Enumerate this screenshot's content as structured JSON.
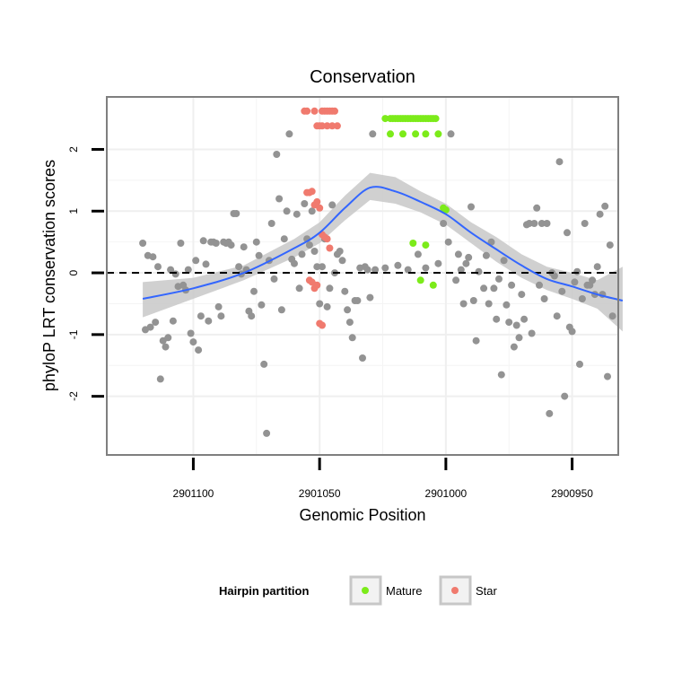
{
  "chart_data": {
    "type": "scatter",
    "title": "Conservation",
    "xlabel": "Genomic Position",
    "ylabel": "phyloP LRT conservation scores",
    "x_reversed": true,
    "xlim": [
      2901130,
      2900936
    ],
    "ylim": [
      -2.95,
      2.85
    ],
    "x_ticks": [
      2901100,
      2901050,
      2901000,
      2900950
    ],
    "x_tick_labels": [
      "2901100",
      "2901050",
      "2901000",
      "2900950"
    ],
    "y_ticks": [
      -2,
      -1,
      0,
      1,
      2
    ],
    "y_tick_labels": [
      "-2",
      "-1",
      "0",
      "1",
      "2"
    ],
    "reference_line": {
      "y": 0,
      "style": "dashed"
    },
    "legend": {
      "title": "Hairpin partition",
      "placement": "bottom",
      "entries": [
        {
          "label": "Mature",
          "color": "#7CEB1A"
        },
        {
          "label": "Star",
          "color": "#F07A6E"
        }
      ]
    },
    "colors": {
      "other": "#939393",
      "Mature": "#7CEB1A",
      "Star": "#F07A6E",
      "smooth": "#3366FF",
      "ribbon": "#c8c8c8"
    },
    "series": [
      {
        "name": "Other",
        "points": [
          [
            2901120,
            0.48
          ],
          [
            2901119,
            -0.92
          ],
          [
            2901118,
            0.28
          ],
          [
            2901117,
            -0.88
          ],
          [
            2901116,
            0.26
          ],
          [
            2901115,
            -0.8
          ],
          [
            2901114,
            0.1
          ],
          [
            2901113,
            -1.72
          ],
          [
            2901112,
            -1.1
          ],
          [
            2901111,
            -1.2
          ],
          [
            2901110,
            -1.05
          ],
          [
            2901109,
            0.05
          ],
          [
            2901108,
            -0.78
          ],
          [
            2901107,
            -0.02
          ],
          [
            2901106,
            -0.22
          ],
          [
            2901105,
            0.48
          ],
          [
            2901104,
            -0.2
          ],
          [
            2901103,
            -0.28
          ],
          [
            2901102,
            0.05
          ],
          [
            2901101,
            -0.98
          ],
          [
            2901100,
            -1.12
          ],
          [
            2901099,
            0.2
          ],
          [
            2901098,
            -1.25
          ],
          [
            2901097,
            -0.7
          ],
          [
            2901096,
            0.52
          ],
          [
            2901095,
            0.14
          ],
          [
            2901094,
            -0.78
          ],
          [
            2901093,
            0.5
          ],
          [
            2901092,
            0.5
          ],
          [
            2901091,
            0.48
          ],
          [
            2901090,
            -0.55
          ],
          [
            2901089,
            -0.7
          ],
          [
            2901088,
            0.5
          ],
          [
            2901087,
            0.48
          ],
          [
            2901086,
            0.5
          ],
          [
            2901085,
            0.45
          ],
          [
            2901084,
            0.96
          ],
          [
            2901083,
            0.96
          ],
          [
            2901082,
            0.1
          ],
          [
            2901081,
            -0.02
          ],
          [
            2901080,
            0.42
          ],
          [
            2901079,
            0.05
          ],
          [
            2901078,
            -0.62
          ],
          [
            2901077,
            -0.7
          ],
          [
            2901076,
            -0.3
          ],
          [
            2901075,
            0.5
          ],
          [
            2901074,
            0.28
          ],
          [
            2901073,
            -0.52
          ],
          [
            2901072,
            -1.48
          ],
          [
            2901071,
            -2.6
          ],
          [
            2901070,
            0.2
          ],
          [
            2901069,
            0.8
          ],
          [
            2901068,
            -0.1
          ],
          [
            2901067,
            1.92
          ],
          [
            2901066,
            1.2
          ],
          [
            2901065,
            -0.6
          ],
          [
            2901064,
            0.55
          ],
          [
            2901063,
            1.0
          ],
          [
            2901062,
            2.25
          ],
          [
            2901061,
            0.22
          ],
          [
            2901060,
            0.15
          ],
          [
            2901059,
            0.95
          ],
          [
            2901058,
            -0.25
          ],
          [
            2901057,
            0.3
          ],
          [
            2901056,
            1.12
          ],
          [
            2901055,
            0.55
          ],
          [
            2901054,
            0.45
          ],
          [
            2901053,
            1.0
          ],
          [
            2901052,
            0.35
          ],
          [
            2901051,
            0.1
          ],
          [
            2901050,
            -0.5
          ],
          [
            2901049,
            0.1
          ],
          [
            2901048,
            0.55
          ],
          [
            2901047,
            -0.55
          ],
          [
            2901046,
            -0.25
          ],
          [
            2901045,
            1.1
          ],
          [
            2901044,
            0.0
          ],
          [
            2901043,
            0.3
          ],
          [
            2901042,
            0.35
          ],
          [
            2901041,
            0.2
          ],
          [
            2901040,
            -0.3
          ],
          [
            2901039,
            -0.6
          ],
          [
            2901038,
            -0.8
          ],
          [
            2901037,
            -1.05
          ],
          [
            2901036,
            -0.45
          ],
          [
            2901035,
            -0.45
          ],
          [
            2901034,
            0.08
          ],
          [
            2901033,
            -1.38
          ],
          [
            2901032,
            0.1
          ],
          [
            2901031,
            0.05
          ],
          [
            2901030,
            -0.4
          ],
          [
            2901029,
            2.25
          ],
          [
            2901028,
            0.05
          ],
          [
            2901024,
            0.08
          ],
          [
            2901019,
            0.12
          ],
          [
            2901015,
            0.05
          ],
          [
            2901011,
            0.3
          ],
          [
            2901008,
            0.08
          ],
          [
            2901003,
            0.15
          ],
          [
            2901001,
            0.8
          ],
          [
            2900999,
            0.5
          ],
          [
            2900998,
            2.25
          ],
          [
            2900996,
            -0.12
          ],
          [
            2900995,
            0.3
          ],
          [
            2900994,
            0.05
          ],
          [
            2900993,
            -0.5
          ],
          [
            2900992,
            0.15
          ],
          [
            2900991,
            0.25
          ],
          [
            2900990,
            1.07
          ],
          [
            2900989,
            -0.45
          ],
          [
            2900988,
            -1.1
          ],
          [
            2900987,
            0.02
          ],
          [
            2900985,
            -0.25
          ],
          [
            2900984,
            0.28
          ],
          [
            2900983,
            -0.5
          ],
          [
            2900982,
            0.5
          ],
          [
            2900981,
            -0.25
          ],
          [
            2900980,
            -0.75
          ],
          [
            2900979,
            -0.1
          ],
          [
            2900978,
            -1.65
          ],
          [
            2900977,
            0.2
          ],
          [
            2900976,
            -0.52
          ],
          [
            2900975,
            -0.8
          ],
          [
            2900974,
            -0.2
          ],
          [
            2900973,
            -1.2
          ],
          [
            2900972,
            -0.85
          ],
          [
            2900971,
            -1.05
          ],
          [
            2900970,
            -0.35
          ],
          [
            2900969,
            -0.75
          ],
          [
            2900968,
            0.78
          ],
          [
            2900967,
            0.8
          ],
          [
            2900966,
            -0.98
          ],
          [
            2900965,
            0.8
          ],
          [
            2900964,
            1.05
          ],
          [
            2900963,
            -0.2
          ],
          [
            2900962,
            0.8
          ],
          [
            2900961,
            -0.42
          ],
          [
            2900960,
            0.8
          ],
          [
            2900959,
            -2.28
          ],
          [
            2900958,
            0.0
          ],
          [
            2900957,
            -0.05
          ],
          [
            2900956,
            -0.7
          ],
          [
            2900955,
            1.8
          ],
          [
            2900954,
            -0.3
          ],
          [
            2900953,
            -2.0
          ],
          [
            2900952,
            0.65
          ],
          [
            2900951,
            -0.88
          ],
          [
            2900950,
            -0.95
          ],
          [
            2900949,
            -0.15
          ],
          [
            2900948,
            0.02
          ],
          [
            2900947,
            -1.48
          ],
          [
            2900946,
            -0.42
          ],
          [
            2900945,
            0.8
          ],
          [
            2900944,
            -0.2
          ],
          [
            2900943,
            -0.2
          ],
          [
            2900942,
            -0.12
          ],
          [
            2900941,
            -0.35
          ],
          [
            2900940,
            0.1
          ],
          [
            2900939,
            0.95
          ],
          [
            2900938,
            -0.35
          ],
          [
            2900937,
            1.08
          ],
          [
            2900936,
            -1.68
          ],
          [
            2900935,
            0.45
          ],
          [
            2900934,
            -0.7
          ]
        ]
      },
      {
        "name": "Star",
        "points": [
          [
            2901056,
            2.62
          ],
          [
            2901055,
            2.62
          ],
          [
            2901052,
            2.62
          ],
          [
            2901049,
            2.62
          ],
          [
            2901048,
            2.62
          ],
          [
            2901047,
            2.62
          ],
          [
            2901046,
            2.62
          ],
          [
            2901045,
            2.62
          ],
          [
            2901044,
            2.62
          ],
          [
            2901051,
            2.38
          ],
          [
            2901050,
            2.38
          ],
          [
            2901049,
            2.38
          ],
          [
            2901047,
            2.38
          ],
          [
            2901045,
            2.38
          ],
          [
            2901043,
            2.38
          ],
          [
            2901055,
            1.3
          ],
          [
            2901054,
            1.3
          ],
          [
            2901053,
            1.32
          ],
          [
            2901052,
            1.1
          ],
          [
            2901051,
            1.15
          ],
          [
            2901050,
            1.05
          ],
          [
            2901049,
            0.62
          ],
          [
            2901048,
            0.58
          ],
          [
            2901047,
            0.55
          ],
          [
            2901046,
            0.4
          ],
          [
            2901054,
            -0.12
          ],
          [
            2901053,
            -0.15
          ],
          [
            2901052,
            -0.25
          ],
          [
            2901051,
            -0.2
          ],
          [
            2901050,
            -0.82
          ],
          [
            2901049,
            -0.85
          ]
        ]
      },
      {
        "name": "Mature",
        "points": [
          [
            2901024,
            2.5
          ],
          [
            2901022,
            2.5
          ],
          [
            2901021,
            2.5
          ],
          [
            2901020,
            2.5
          ],
          [
            2901019,
            2.5
          ],
          [
            2901018,
            2.5
          ],
          [
            2901017,
            2.5
          ],
          [
            2901016,
            2.5
          ],
          [
            2901015,
            2.5
          ],
          [
            2901014,
            2.5
          ],
          [
            2901013,
            2.5
          ],
          [
            2901012,
            2.5
          ],
          [
            2901011,
            2.5
          ],
          [
            2901010,
            2.5
          ],
          [
            2901009,
            2.5
          ],
          [
            2901008,
            2.5
          ],
          [
            2901007,
            2.5
          ],
          [
            2901006,
            2.5
          ],
          [
            2901005,
            2.5
          ],
          [
            2901004,
            2.5
          ],
          [
            2901022,
            2.25
          ],
          [
            2901017,
            2.25
          ],
          [
            2901012,
            2.25
          ],
          [
            2901008,
            2.25
          ],
          [
            2901003,
            2.25
          ],
          [
            2901001,
            1.05
          ],
          [
            2901000,
            1.02
          ],
          [
            2901013,
            0.48
          ],
          [
            2901008,
            0.45
          ],
          [
            2901010,
            -0.12
          ],
          [
            2901005,
            -0.2
          ]
        ]
      }
    ],
    "smooth": {
      "method": "loess",
      "x": [
        2901120,
        2901100,
        2901080,
        2901060,
        2901050,
        2901040,
        2901030,
        2901020,
        2901010,
        2901000,
        2900990,
        2900980,
        2900970,
        2900960,
        2900950,
        2900940,
        2900930
      ],
      "y": [
        -0.42,
        -0.25,
        0.0,
        0.4,
        0.65,
        1.05,
        1.38,
        1.32,
        1.15,
        0.95,
        0.65,
        0.38,
        0.12,
        -0.1,
        -0.22,
        -0.35,
        -0.45
      ],
      "ci_low": [
        -0.72,
        -0.42,
        -0.12,
        0.25,
        0.48,
        0.85,
        1.18,
        1.12,
        0.98,
        0.78,
        0.48,
        0.18,
        -0.08,
        -0.28,
        -0.42,
        -0.58,
        -0.95
      ],
      "ci_high": [
        -0.15,
        -0.08,
        0.12,
        0.55,
        0.82,
        1.25,
        1.62,
        1.55,
        1.32,
        1.12,
        0.82,
        0.58,
        0.3,
        0.1,
        0.0,
        -0.12,
        0.1
      ]
    }
  }
}
